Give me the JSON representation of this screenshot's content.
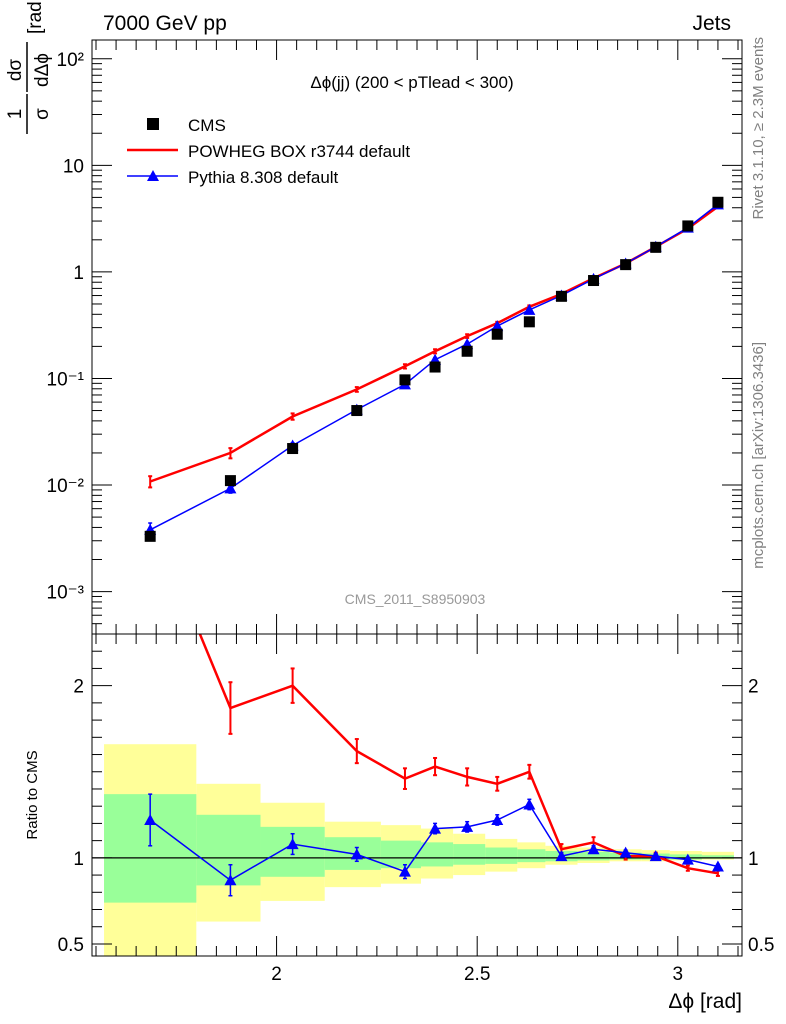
{
  "header": {
    "left": "7000 GeV pp",
    "right": "Jets"
  },
  "side_labels": {
    "rivet": "Rivet 3.1.10, ≥ 2.3M events",
    "source": "mcplots.cern.ch [arXiv:1306.3436]"
  },
  "watermark": "CMS_2011_S8950903",
  "colors": {
    "data": "#000000",
    "powheg": "#ff0000",
    "pythia": "#0000ff",
    "band_yellow": "#ffff99",
    "band_green": "#99ff99"
  },
  "chart_data": [
    {
      "type": "scatter",
      "panel": "main",
      "title": "Δϕ(jj) (200 < pTlead <  300)",
      "ylabel": "1/σ dσ/dΔϕ [rad⁻¹]",
      "yscale": "log",
      "xlim": [
        1.54,
        3.16
      ],
      "ylim": [
        0.0004,
        150
      ],
      "ytick_labels": [
        "10⁻³",
        "10⁻²",
        "10⁻¹",
        "1",
        "10",
        "10²"
      ],
      "legend_position": "top-left",
      "series": [
        {
          "name": "CMS",
          "style": "square-markers",
          "x": [
            1.685,
            1.885,
            2.04,
            2.2,
            2.32,
            2.395,
            2.475,
            2.55,
            2.63,
            2.71,
            2.79,
            2.87,
            2.945,
            3.025,
            3.1
          ],
          "y": [
            0.0033,
            0.011,
            0.022,
            0.05,
            0.097,
            0.128,
            0.18,
            0.26,
            0.34,
            0.59,
            0.83,
            1.17,
            1.7,
            2.7,
            4.5
          ]
        },
        {
          "name": "POWHEG BOX r3744 default",
          "style": "line",
          "x": [
            1.685,
            1.885,
            2.04,
            2.2,
            2.32,
            2.395,
            2.475,
            2.55,
            2.63,
            2.71,
            2.79,
            2.87,
            2.945,
            3.025,
            3.1
          ],
          "y": [
            0.0108,
            0.02,
            0.044,
            0.079,
            0.13,
            0.18,
            0.25,
            0.33,
            0.47,
            0.62,
            0.87,
            1.2,
            1.72,
            2.55,
            4.1
          ],
          "yerr": [
            0.0013,
            0.0022,
            0.003,
            0.004,
            0.006,
            0.008,
            0.01,
            0.01,
            0.015,
            0.02,
            0.02,
            0.03,
            0.04,
            0.05,
            0.08
          ]
        },
        {
          "name": "Pythia 8.308 default",
          "style": "triangle-line",
          "x": [
            1.685,
            1.885,
            2.04,
            2.2,
            2.32,
            2.395,
            2.475,
            2.55,
            2.63,
            2.71,
            2.79,
            2.87,
            2.945,
            3.025,
            3.1
          ],
          "y": [
            0.0038,
            0.0093,
            0.0235,
            0.051,
            0.088,
            0.15,
            0.21,
            0.31,
            0.44,
            0.6,
            0.86,
            1.2,
            1.72,
            2.6,
            4.3
          ],
          "yerr": [
            0.0006,
            0.0009,
            0.0014,
            0.002,
            0.004,
            0.006,
            0.008,
            0.01,
            0.012,
            0.015,
            0.02,
            0.03,
            0.04,
            0.05,
            0.08
          ]
        }
      ]
    },
    {
      "type": "line",
      "panel": "ratio",
      "ylabel": "Ratio to CMS",
      "xlabel": "Δϕ [rad]",
      "xlim": [
        1.54,
        3.16
      ],
      "ylim": [
        0.43,
        2.3
      ],
      "xtick_labels": [
        "2",
        "2.5",
        "3"
      ],
      "ytick_labels": [
        "0.5",
        "1",
        "2"
      ],
      "reference_line": 1,
      "bands": {
        "x_edges": [
          1.57,
          1.8,
          1.96,
          2.12,
          2.26,
          2.36,
          2.44,
          2.52,
          2.6,
          2.67,
          2.75,
          2.83,
          2.91,
          2.98,
          3.06,
          3.14
        ],
        "yellow_lo": [
          0.4,
          0.63,
          0.75,
          0.83,
          0.85,
          0.88,
          0.9,
          0.92,
          0.94,
          0.96,
          0.97,
          0.98,
          0.98,
          0.985,
          0.99
        ],
        "yellow_hi": [
          1.66,
          1.43,
          1.32,
          1.21,
          1.19,
          1.17,
          1.14,
          1.11,
          1.09,
          1.07,
          1.06,
          1.05,
          1.045,
          1.04,
          1.035
        ],
        "green_lo": [
          0.74,
          0.84,
          0.89,
          0.93,
          0.94,
          0.95,
          0.96,
          0.965,
          0.975,
          0.98,
          0.985,
          0.99,
          0.99,
          0.99,
          0.995
        ],
        "green_hi": [
          1.37,
          1.25,
          1.18,
          1.12,
          1.1,
          1.09,
          1.08,
          1.06,
          1.05,
          1.04,
          1.035,
          1.03,
          1.025,
          1.02,
          1.015
        ]
      },
      "series": [
        {
          "name": "POWHEG BOX r3744 default",
          "x": [
            1.685,
            1.885,
            2.04,
            2.2,
            2.32,
            2.395,
            2.475,
            2.55,
            2.63,
            2.71,
            2.79,
            2.87,
            2.945,
            3.025,
            3.1
          ],
          "y": [
            3.0,
            1.87,
            2.0,
            1.62,
            1.46,
            1.53,
            1.47,
            1.43,
            1.5,
            1.05,
            1.09,
            1.01,
            1.01,
            0.94,
            0.91
          ],
          "yerr": [
            0.3,
            0.15,
            0.1,
            0.07,
            0.06,
            0.05,
            0.05,
            0.04,
            0.04,
            0.03,
            0.03,
            0.02,
            0.02,
            0.015,
            0.015
          ]
        },
        {
          "name": "Pythia 8.308 default",
          "x": [
            1.685,
            1.885,
            2.04,
            2.2,
            2.32,
            2.395,
            2.475,
            2.55,
            2.63,
            2.71,
            2.79,
            2.87,
            2.945,
            3.025,
            3.1
          ],
          "y": [
            1.22,
            0.87,
            1.08,
            1.02,
            0.92,
            1.17,
            1.18,
            1.22,
            1.31,
            1.01,
            1.05,
            1.03,
            1.01,
            0.99,
            0.95
          ],
          "yerr": [
            0.15,
            0.09,
            0.06,
            0.04,
            0.04,
            0.03,
            0.03,
            0.03,
            0.03,
            0.02,
            0.02,
            0.015,
            0.015,
            0.012,
            0.012
          ]
        }
      ]
    }
  ]
}
